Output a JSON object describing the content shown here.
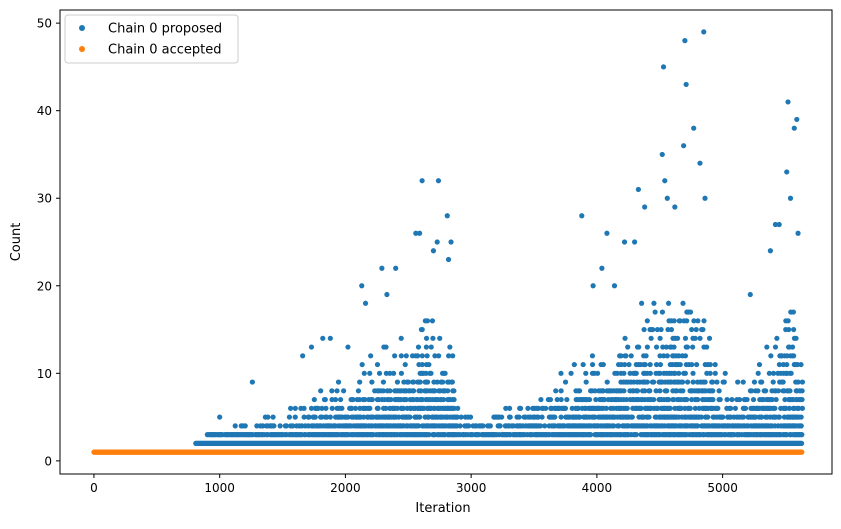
{
  "chart_data": {
    "type": "scatter",
    "title": "",
    "xlabel": "Iteration",
    "ylabel": "Count",
    "xlim": [
      -270,
      5870
    ],
    "ylim": [
      -1.5,
      51.5
    ],
    "x_ticks": [
      0,
      1000,
      2000,
      3000,
      4000,
      5000
    ],
    "y_ticks": [
      0,
      10,
      20,
      30,
      40,
      50
    ],
    "grid": false,
    "legend_position": "top-left",
    "legend": [
      "Chain 0 proposed",
      "Chain 0 accepted"
    ],
    "colors": {
      "proposed": "#1f77b4",
      "accepted": "#ff7f0e"
    },
    "accepted_series": {
      "name": "Chain 0 accepted",
      "x_range": [
        0,
        5630
      ],
      "y": 1
    },
    "proposed_series": {
      "name": "Chain 0 proposed",
      "x_range": [
        810,
        5630
      ],
      "baseline_y": 2,
      "outliers": [
        [
          1260,
          9
        ],
        [
          1000,
          5
        ],
        [
          1660,
          12
        ],
        [
          1730,
          13
        ],
        [
          1820,
          14
        ],
        [
          1880,
          14
        ],
        [
          2020,
          13
        ],
        [
          2130,
          20
        ],
        [
          2160,
          18
        ],
        [
          2290,
          22
        ],
        [
          2330,
          19
        ],
        [
          2400,
          22
        ],
        [
          2560,
          26
        ],
        [
          2590,
          26
        ],
        [
          2610,
          32
        ],
        [
          2700,
          24
        ],
        [
          2730,
          25
        ],
        [
          2740,
          32
        ],
        [
          2810,
          28
        ],
        [
          2820,
          23
        ],
        [
          2840,
          25
        ],
        [
          3880,
          28
        ],
        [
          3970,
          20
        ],
        [
          4040,
          22
        ],
        [
          4080,
          26
        ],
        [
          4140,
          20
        ],
        [
          4220,
          25
        ],
        [
          4300,
          25
        ],
        [
          4330,
          31
        ],
        [
          4380,
          29
        ],
        [
          4520,
          35
        ],
        [
          4530,
          45
        ],
        [
          4540,
          32
        ],
        [
          4560,
          30
        ],
        [
          4620,
          29
        ],
        [
          4690,
          36
        ],
        [
          4700,
          48
        ],
        [
          4710,
          43
        ],
        [
          4770,
          38
        ],
        [
          4820,
          34
        ],
        [
          4850,
          49
        ],
        [
          4860,
          30
        ],
        [
          5220,
          19
        ],
        [
          5380,
          24
        ],
        [
          5420,
          27
        ],
        [
          5450,
          27
        ],
        [
          5510,
          33
        ],
        [
          5520,
          41
        ],
        [
          5540,
          30
        ],
        [
          5570,
          38
        ],
        [
          5590,
          39
        ],
        [
          5600,
          26
        ]
      ]
    }
  }
}
